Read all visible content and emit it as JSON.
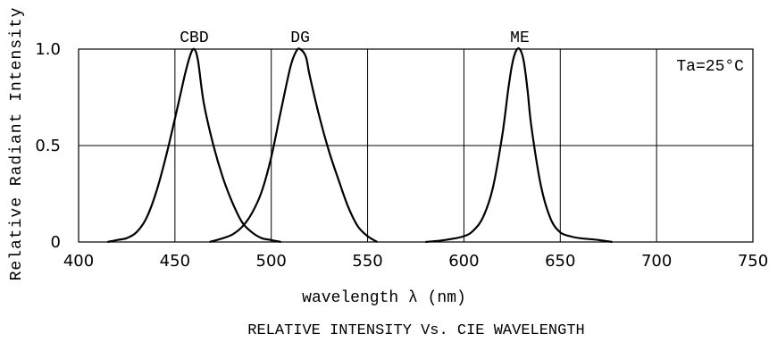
{
  "chart_data": {
    "type": "line",
    "title": "RELATIVE INTENSITY Vs. CIE WAVELENGTH",
    "xlabel": "wavelength λ (nm)",
    "ylabel": "Relative Radiant Intensity",
    "annotation": "Ta=25°C",
    "xlim": [
      400,
      750
    ],
    "ylim": [
      0,
      1.0
    ],
    "x_ticks": [
      400,
      450,
      500,
      550,
      600,
      650,
      700,
      750
    ],
    "y_ticks": [
      0,
      0.5,
      1.0
    ],
    "y_tick_labels": [
      "0",
      "0.5",
      "1.0"
    ],
    "grid": true,
    "series": [
      {
        "name": "CBD",
        "x": [
          415,
          420,
          425,
          430,
          435,
          440,
          445,
          450,
          455,
          458,
          460,
          462,
          465,
          470,
          475,
          480,
          485,
          490,
          495,
          500,
          505
        ],
        "y": [
          0.0,
          0.01,
          0.02,
          0.05,
          0.12,
          0.25,
          0.43,
          0.64,
          0.86,
          0.97,
          1.0,
          0.94,
          0.72,
          0.5,
          0.33,
          0.2,
          0.1,
          0.05,
          0.02,
          0.01,
          0.0
        ]
      },
      {
        "name": "DG",
        "x": [
          468,
          475,
          480,
          485,
          490,
          495,
          500,
          505,
          510,
          513,
          515,
          518,
          520,
          525,
          530,
          535,
          540,
          545,
          550,
          555
        ],
        "y": [
          0.0,
          0.02,
          0.04,
          0.08,
          0.15,
          0.26,
          0.44,
          0.68,
          0.91,
          0.99,
          1.0,
          0.96,
          0.86,
          0.65,
          0.47,
          0.32,
          0.18,
          0.08,
          0.03,
          0.0
        ]
      },
      {
        "name": "ME",
        "x": [
          580,
          590,
          600,
          605,
          610,
          615,
          620,
          623,
          625,
          627,
          629,
          631,
          633,
          635,
          640,
          645,
          650,
          655,
          660,
          670,
          677
        ],
        "y": [
          0.0,
          0.01,
          0.03,
          0.06,
          0.13,
          0.28,
          0.56,
          0.79,
          0.92,
          0.99,
          1.0,
          0.94,
          0.79,
          0.6,
          0.29,
          0.12,
          0.05,
          0.03,
          0.02,
          0.01,
          0.0
        ]
      }
    ]
  }
}
